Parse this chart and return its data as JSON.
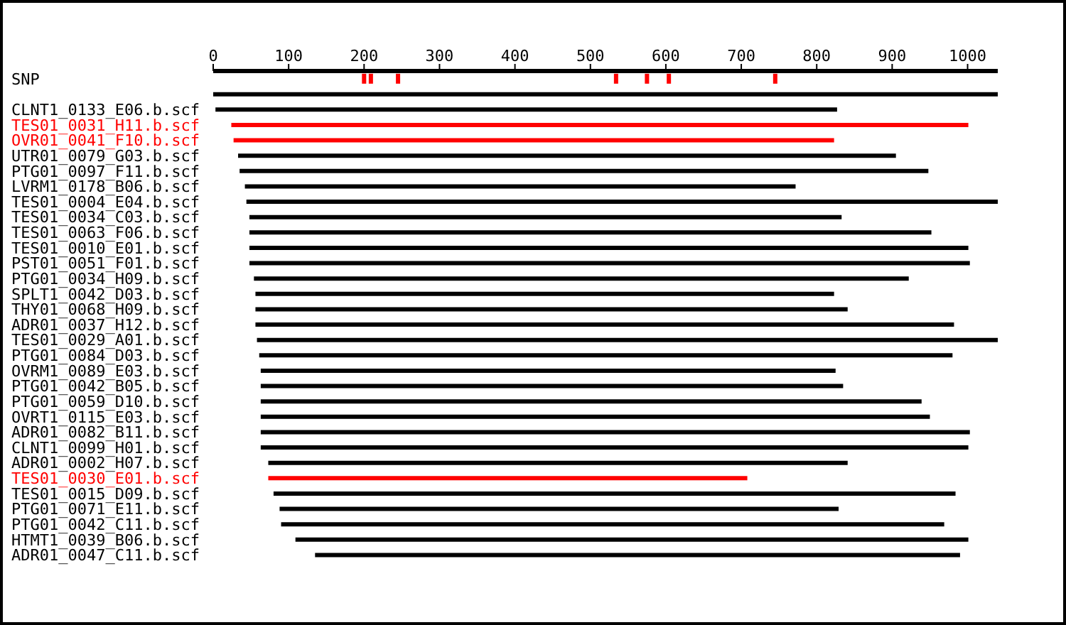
{
  "chart_data": {
    "type": "bar",
    "orientation": "horizontal",
    "categories": [
      "SNP",
      null,
      "CLNT1_0133_E06.b.scf",
      "TES01_0031_H11.b.scf",
      "OVR01_0041_F10.b.scf",
      "UTR01_0079_G03.b.scf",
      "PTG01_0097_F11.b.scf",
      "LVRM1_0178_B06.b.scf",
      "TES01_0004_E04.b.scf",
      "TES01_0034_C03.b.scf",
      "TES01_0063_F06.b.scf",
      "TES01_0010_E01.b.scf",
      "PST01_0051_F01.b.scf",
      "PTG01_0034_H09.b.scf",
      "SPLT1_0042_D03.b.scf",
      "THY01_0068_H09.b.scf",
      "ADR01_0037_H12.b.scf",
      "TES01_0029_A01.b.scf",
      "PTG01_0084_D03.b.scf",
      "OVRM1_0089_E03.b.scf",
      "PTG01_0042_B05.b.scf",
      "PTG01_0059_D10.b.scf",
      "OVRT1_0115_E03.b.scf",
      "ADR01_0082_B11.b.scf",
      "CLNT1_0099_H01.b.scf",
      "ADR01_0002_H07.b.scf",
      "TES01_0030_E01.b.scf",
      "TES01_0015_D09.b.scf",
      "PTG01_0071_E11.b.scf",
      "PTG01_0042_C11.b.scf",
      "HTMT1_0039_B06.b.scf",
      "ADR01_0047_C11.b.scf"
    ],
    "base": [
      null,
      0,
      3,
      24,
      27,
      33,
      35,
      42,
      44,
      48,
      48,
      48,
      48,
      54,
      56,
      56,
      56,
      58,
      61,
      63,
      63,
      63,
      63,
      63,
      63,
      73,
      73,
      80,
      88,
      90,
      109,
      135
    ],
    "values": [
      null,
      1040,
      824,
      977,
      796,
      872,
      913,
      730,
      996,
      785,
      904,
      953,
      955,
      868,
      767,
      785,
      926,
      982,
      919,
      762,
      772,
      876,
      887,
      940,
      938,
      768,
      635,
      904,
      741,
      879,
      892,
      855
    ],
    "colors": [
      "#000000",
      "#000000",
      "#000000",
      "#ff0000",
      "#ff0000",
      "#000000",
      "#000000",
      "#000000",
      "#000000",
      "#000000",
      "#000000",
      "#000000",
      "#000000",
      "#000000",
      "#000000",
      "#000000",
      "#000000",
      "#000000",
      "#000000",
      "#000000",
      "#000000",
      "#000000",
      "#000000",
      "#000000",
      "#000000",
      "#000000",
      "#ff0000",
      "#000000",
      "#000000",
      "#000000",
      "#000000",
      "#000000"
    ],
    "series": [
      {
        "type": "scatter",
        "color": "#ff0000",
        "marker": "square",
        "x": [
          "SNP",
          "SNP",
          "SNP",
          "SNP",
          "SNP",
          "SNP",
          "SNP"
        ],
        "values": [
          200,
          209,
          245,
          534,
          575,
          604,
          745
        ]
      }
    ],
    "xlim": [
      0,
      1040
    ],
    "xticks": [
      0,
      100,
      200,
      300,
      400,
      500,
      600,
      700,
      800,
      900,
      1000
    ],
    "grid": false,
    "legend": false
  }
}
